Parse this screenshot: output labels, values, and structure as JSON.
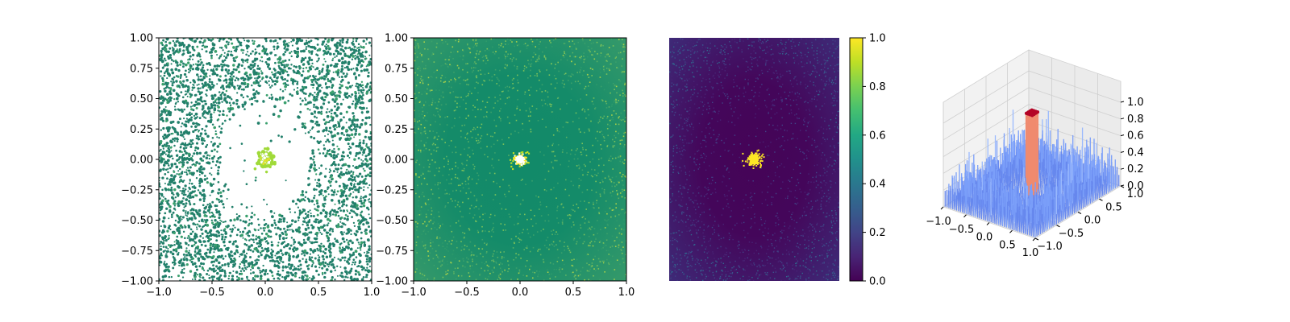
{
  "chart_data": [
    {
      "type": "scatter",
      "title": "",
      "xlabel": "",
      "ylabel": "",
      "xlim": [
        -1,
        1
      ],
      "ylim": [
        -1,
        1
      ],
      "xticks": [
        "−1.0",
        "−0.5",
        "0.0",
        "0.5",
        "1.0"
      ],
      "yticks": [
        "1.00",
        "0.75",
        "0.50",
        "0.25",
        "0.00",
        "−0.25",
        "−0.50",
        "−0.75",
        "−1.00"
      ],
      "description_of_distribution": "dense outer ring of points at radius > 0.4, sparse middle, bright cluster at center radius < 0.1",
      "colors": {
        "outer": "#22806b",
        "mid": "#3aa06d",
        "center": "#fde725",
        "center_edge": "#a0da39"
      }
    },
    {
      "type": "heatmap",
      "title": "",
      "xlabel": "",
      "ylabel": "",
      "xlim": [
        -1,
        1
      ],
      "ylim": [
        -1,
        1
      ],
      "xticks": [
        "−1.0",
        "−0.5",
        "0.0",
        "0.5",
        "1.0"
      ],
      "yticks": [
        "1.00",
        "0.75",
        "0.50",
        "0.25",
        "0.00",
        "−0.25",
        "−0.50",
        "−0.75",
        "−1.00"
      ],
      "colors": {
        "background": "#138a69",
        "speckle": "#3ba06b",
        "center": "#fde725"
      }
    },
    {
      "type": "heatmap",
      "title": "",
      "colormap": "viridis",
      "value_range": [
        0,
        1
      ],
      "colorbar_ticks": [
        "1.0",
        "0.8",
        "0.6",
        "0.4",
        "0.2",
        "0.0"
      ],
      "colors": {
        "background": "#440154",
        "noise": "#3b528b",
        "center": "#fde725"
      }
    },
    {
      "type": "surface",
      "title": "",
      "colormap": "coolwarm",
      "xticks": [
        "−1.0",
        "−0.5",
        "0.0",
        "0.5",
        "1.0"
      ],
      "yticks": [
        "1.0",
        "0.5",
        "0.0",
        "−0.5",
        "−1.0"
      ],
      "zticks": [
        "1.0",
        "0.8",
        "0.6",
        "0.4",
        "0.2",
        "0.0"
      ],
      "zlim": [
        0,
        1
      ],
      "peak_value": 1.0,
      "noise_level": 0.3,
      "colors": {
        "low": "#6788ee",
        "high": "#b40426",
        "mid": "#f4987a"
      }
    }
  ]
}
